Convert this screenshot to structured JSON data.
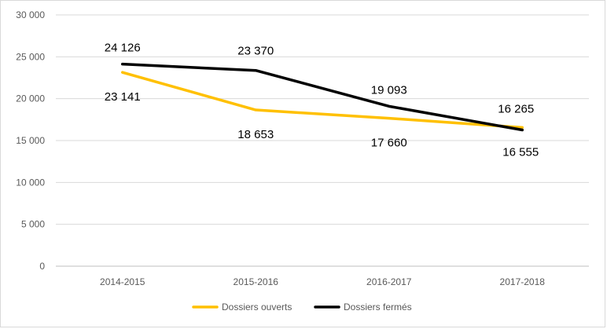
{
  "chart_data": {
    "type": "line",
    "categories": [
      "2014-2015",
      "2015-2016",
      "2016-2017",
      "2017-2018"
    ],
    "ylim": [
      0,
      30000
    ],
    "yticks": [
      0,
      5000,
      10000,
      15000,
      20000,
      25000,
      30000
    ],
    "ytick_labels": [
      "0",
      "5 000",
      "10 000",
      "15 000",
      "20 000",
      "25 000",
      "30 000"
    ],
    "grid": true,
    "legend_position": "bottom",
    "series": [
      {
        "name": "Dossiers ouverts",
        "color": "#FFC000",
        "values": [
          23141,
          18653,
          17660,
          16555
        ],
        "labels": [
          "23 141",
          "18 653",
          "17 660",
          "16 555"
        ]
      },
      {
        "name": "Dossiers fermés",
        "color": "#000000",
        "values": [
          24126,
          23370,
          19093,
          16265
        ],
        "labels": [
          "24 126",
          "23 370",
          "19 093",
          "16 265"
        ]
      }
    ]
  }
}
